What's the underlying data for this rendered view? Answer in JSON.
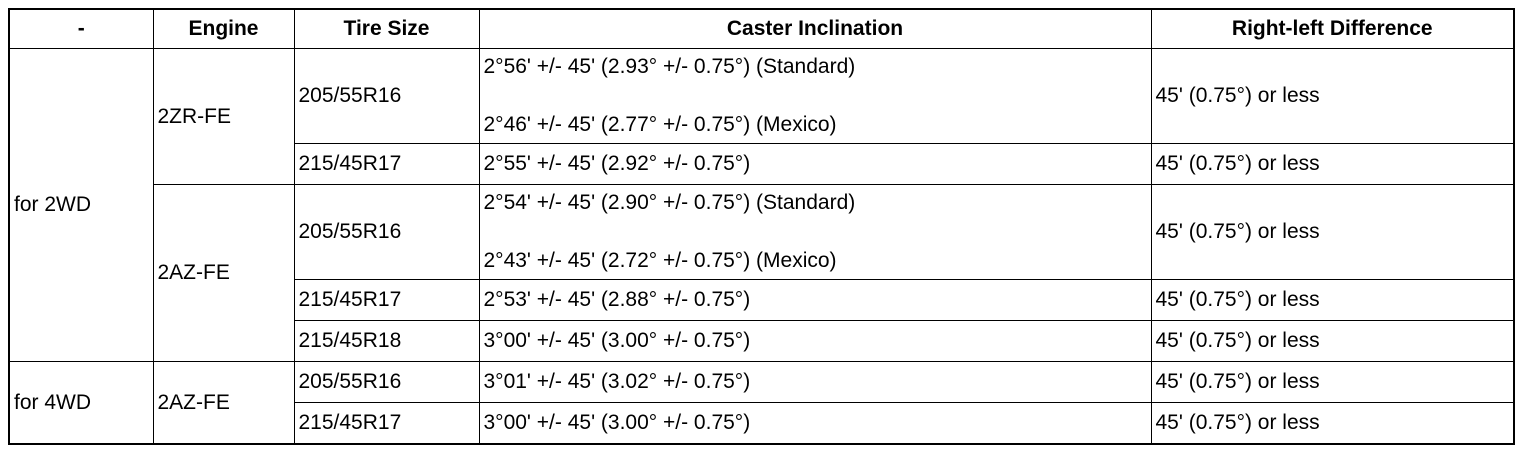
{
  "table": {
    "header": [
      "-",
      "Engine",
      "Tire Size",
      "Caster Inclination",
      "Right-left Difference"
    ],
    "groups": [
      {
        "drive": "for 2WD",
        "engines": [
          {
            "engine": "2ZR-FE",
            "rows": [
              {
                "tire": "205/55R16",
                "caster": [
                  "2°56' +/- 45' (2.93° +/- 0.75°) (Standard)",
                  "2°46' +/- 45' (2.77° +/- 0.75°) (Mexico)"
                ],
                "difference": "45' (0.75°) or less"
              },
              {
                "tire": "215/45R17",
                "caster": [
                  "2°55' +/- 45' (2.92° +/- 0.75°)"
                ],
                "difference": "45' (0.75°) or less"
              }
            ]
          },
          {
            "engine": "2AZ-FE",
            "rows": [
              {
                "tire": "205/55R16",
                "caster": [
                  "2°54' +/- 45' (2.90° +/- 0.75°) (Standard)",
                  "2°43' +/- 45' (2.72° +/- 0.75°) (Mexico)"
                ],
                "difference": "45' (0.75°) or less"
              },
              {
                "tire": "215/45R17",
                "caster": [
                  "2°53' +/- 45' (2.88° +/- 0.75°)"
                ],
                "difference": "45' (0.75°) or less"
              },
              {
                "tire": "215/45R18",
                "caster": [
                  "3°00' +/- 45' (3.00° +/- 0.75°)"
                ],
                "difference": "45' (0.75°) or less"
              }
            ]
          }
        ]
      },
      {
        "drive": "for 4WD",
        "engines": [
          {
            "engine": "2AZ-FE",
            "rows": [
              {
                "tire": "205/55R16",
                "caster": [
                  "3°01' +/- 45' (3.02° +/- 0.75°)"
                ],
                "difference": "45' (0.75°) or less"
              },
              {
                "tire": "215/45R17",
                "caster": [
                  "3°00' +/- 45' (3.00° +/- 0.75°)"
                ],
                "difference": "45' (0.75°) or less"
              }
            ]
          }
        ]
      }
    ]
  }
}
